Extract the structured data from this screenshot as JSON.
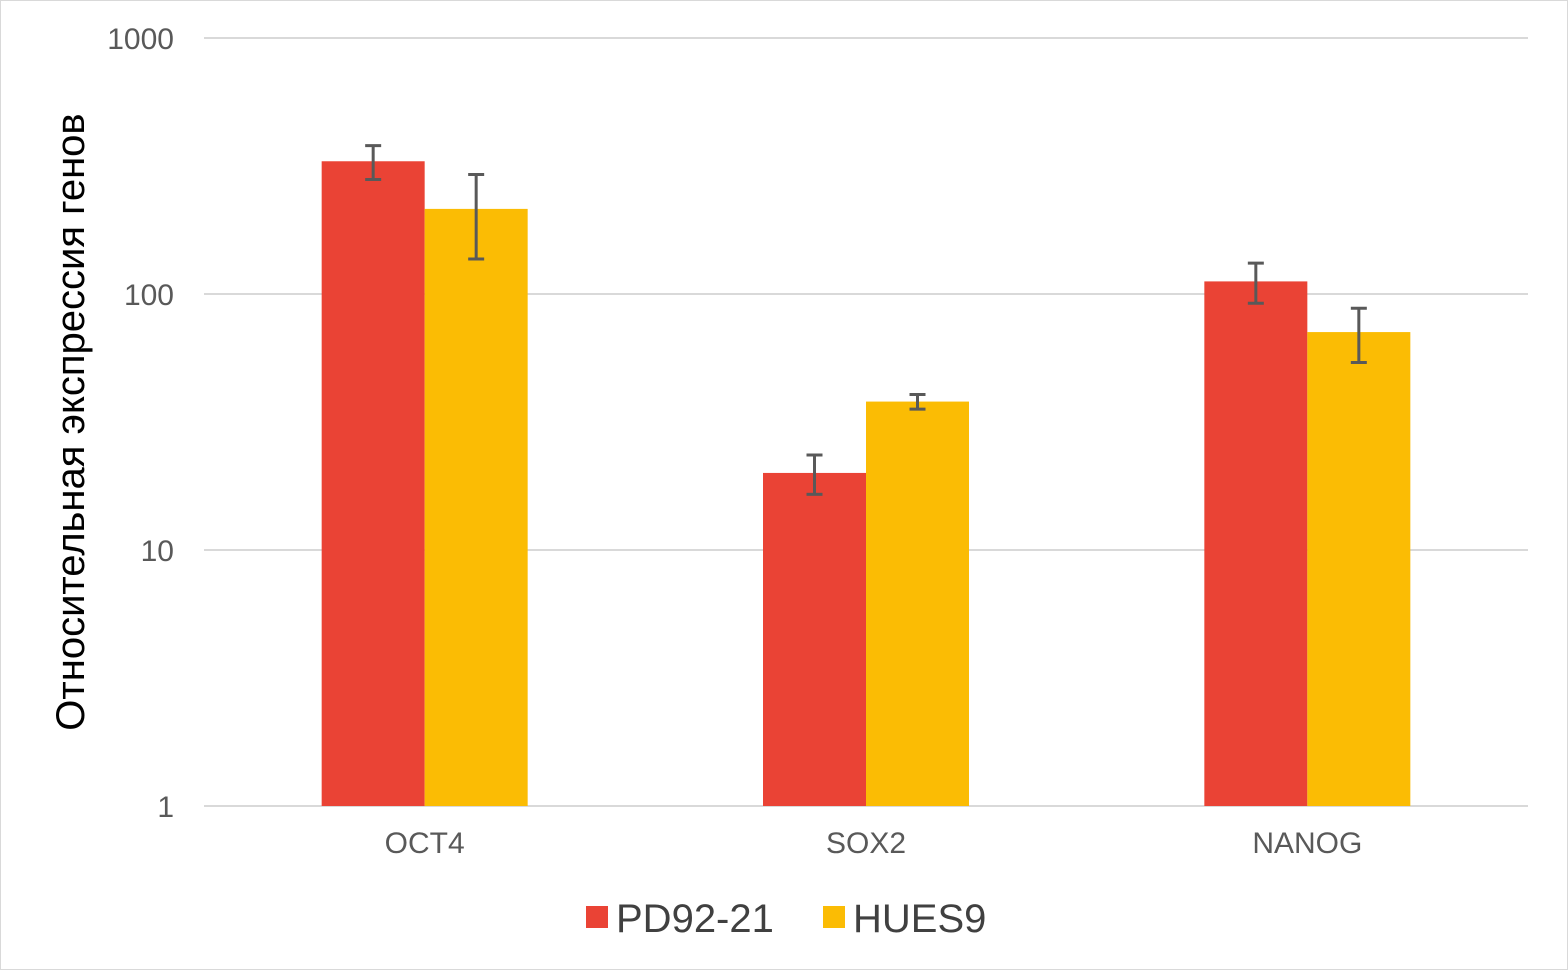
{
  "chart_data": {
    "type": "bar",
    "title": "",
    "xlabel": "",
    "ylabel": "Относительная экспрессия генов",
    "yscale": "log",
    "ylim": [
      1,
      1000
    ],
    "yticks": [
      {
        "value": 1,
        "label": "1"
      },
      {
        "value": 10,
        "label": "10"
      },
      {
        "value": 100,
        "label": "100"
      },
      {
        "value": 1000,
        "label": "1000"
      }
    ],
    "grid": true,
    "legend_position": "bottom",
    "categories": [
      "OCT4",
      "SOX2",
      "NANOG"
    ],
    "series": [
      {
        "name": "PD92-21",
        "color": "#EA4335",
        "values": [
          330,
          20,
          112
        ],
        "errors": [
          50,
          3.5,
          20
        ]
      },
      {
        "name": "HUES9",
        "color": "#FBBC04",
        "values": [
          215,
          38,
          71
        ],
        "errors": [
          78,
          2.5,
          17
        ]
      }
    ]
  }
}
